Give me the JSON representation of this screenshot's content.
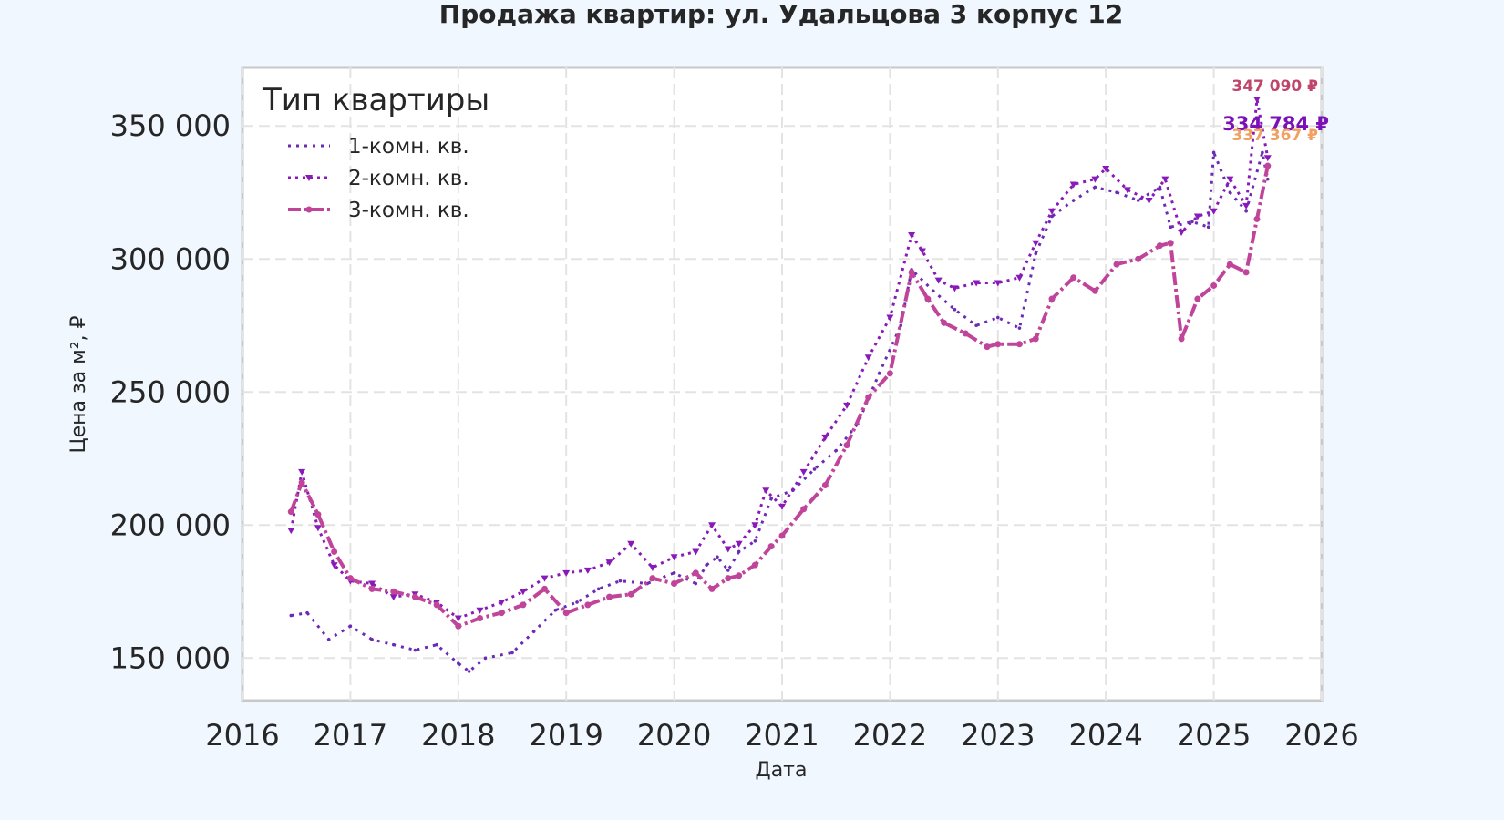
{
  "chart_data": {
    "type": "line",
    "title": "Продажа квартир: ул. Удальцова 3 корпус 12",
    "xlabel": "Дата",
    "ylabel": "Цена за м², ₽",
    "xlim": [
      2016,
      2026
    ],
    "ylim": [
      134000,
      372000
    ],
    "x_ticks": [
      "2016",
      "2017",
      "2018",
      "2019",
      "2020",
      "2021",
      "2022",
      "2023",
      "2024",
      "2025",
      "2026"
    ],
    "y_ticks": [
      "150 000",
      "200 000",
      "250 000",
      "300 000",
      "350 000"
    ],
    "grid": true,
    "legend": {
      "title": "Тип квартиры",
      "placement": "top-left"
    },
    "series": [
      {
        "name": "1-комн. кв.",
        "color": "#6a2bb5",
        "x": [
          2016.45,
          2016.6,
          2016.8,
          2017.0,
          2017.2,
          2017.4,
          2017.6,
          2017.8,
          2018.0,
          2018.1,
          2018.25,
          2018.5,
          2018.7,
          2018.9,
          2019.1,
          2019.3,
          2019.5,
          2019.75,
          2020.0,
          2020.2,
          2020.3,
          2020.4,
          2020.5,
          2020.6,
          2020.75,
          2020.9,
          2021.1,
          2021.3,
          2021.5,
          2021.7,
          2021.9,
          2022.1,
          2022.2,
          2022.4,
          2022.6,
          2022.8,
          2023.0,
          2023.2,
          2023.35,
          2023.5,
          2023.7,
          2023.9,
          2024.1,
          2024.3,
          2024.5,
          2024.6,
          2024.8,
          2024.95,
          2025.0,
          2025.15,
          2025.3,
          2025.45,
          2025.5
        ],
        "values": [
          166000,
          167000,
          157000,
          162000,
          157000,
          155000,
          153000,
          155000,
          148000,
          145000,
          150000,
          152000,
          160000,
          168000,
          171000,
          176000,
          179000,
          178000,
          182000,
          178000,
          185000,
          188000,
          183000,
          190000,
          194000,
          210000,
          213000,
          221000,
          228000,
          238000,
          257000,
          275000,
          296000,
          288000,
          281000,
          275000,
          278000,
          274000,
          302000,
          316000,
          322000,
          327000,
          325000,
          322000,
          327000,
          312000,
          314000,
          312000,
          340000,
          325000,
          318000,
          340000,
          330000
        ]
      },
      {
        "name": "2-комн. кв.",
        "color": "#8a1ab8",
        "x": [
          2016.45,
          2016.55,
          2016.7,
          2016.85,
          2017.0,
          2017.2,
          2017.4,
          2017.6,
          2017.8,
          2018.0,
          2018.2,
          2018.4,
          2018.6,
          2018.8,
          2019.0,
          2019.2,
          2019.4,
          2019.6,
          2019.8,
          2020.0,
          2020.2,
          2020.35,
          2020.5,
          2020.6,
          2020.75,
          2020.85,
          2021.0,
          2021.2,
          2021.4,
          2021.6,
          2021.8,
          2022.0,
          2022.2,
          2022.3,
          2022.45,
          2022.6,
          2022.8,
          2023.0,
          2023.2,
          2023.35,
          2023.5,
          2023.7,
          2023.9,
          2024.0,
          2024.2,
          2024.4,
          2024.55,
          2024.7,
          2024.85,
          2025.0,
          2025.15,
          2025.3,
          2025.4,
          2025.5
        ],
        "values": [
          198000,
          220000,
          199000,
          185000,
          179000,
          178000,
          173000,
          174000,
          171000,
          165000,
          168000,
          171000,
          175000,
          180000,
          182000,
          183000,
          186000,
          193000,
          184000,
          188000,
          190000,
          200000,
          191000,
          193000,
          200000,
          213000,
          207000,
          220000,
          233000,
          245000,
          263000,
          278000,
          309000,
          303000,
          292000,
          289000,
          291000,
          291000,
          293000,
          306000,
          318000,
          328000,
          330000,
          334000,
          326000,
          322000,
          330000,
          310000,
          316000,
          318000,
          330000,
          320000,
          360000,
          338000
        ]
      },
      {
        "name": "3-комн. кв.",
        "color": "#c0459a",
        "x": [
          2016.45,
          2016.55,
          2016.7,
          2016.85,
          2017.0,
          2017.2,
          2017.4,
          2017.6,
          2017.8,
          2018.0,
          2018.2,
          2018.4,
          2018.6,
          2018.8,
          2019.0,
          2019.2,
          2019.4,
          2019.6,
          2019.8,
          2020.0,
          2020.2,
          2020.35,
          2020.5,
          2020.6,
          2020.75,
          2020.9,
          2021.0,
          2021.2,
          2021.4,
          2021.6,
          2021.8,
          2022.0,
          2022.2,
          2022.35,
          2022.5,
          2022.7,
          2022.9,
          2023.0,
          2023.2,
          2023.35,
          2023.5,
          2023.7,
          2023.9,
          2024.1,
          2024.3,
          2024.5,
          2024.6,
          2024.7,
          2024.85,
          2025.0,
          2025.15,
          2025.3,
          2025.4,
          2025.5
        ],
        "values": [
          205000,
          216000,
          204000,
          190000,
          180000,
          176000,
          175000,
          173000,
          170000,
          162000,
          165000,
          167000,
          170000,
          176000,
          167000,
          170000,
          173000,
          174000,
          180000,
          178000,
          182000,
          176000,
          180000,
          181000,
          185000,
          192000,
          196000,
          206000,
          215000,
          230000,
          248000,
          257000,
          295000,
          285000,
          276000,
          272000,
          267000,
          268000,
          268000,
          270000,
          285000,
          293000,
          288000,
          298000,
          300000,
          305000,
          306000,
          270000,
          285000,
          290000,
          298000,
          295000,
          315000,
          335000
        ]
      }
    ],
    "annotations": [
      {
        "text": "347 090 ₽",
        "color": "#c0456a"
      },
      {
        "text": "334 784 ₽",
        "color": "#7a10b5"
      },
      {
        "text": "337 367 ₽",
        "color": "#f0a060"
      }
    ]
  }
}
